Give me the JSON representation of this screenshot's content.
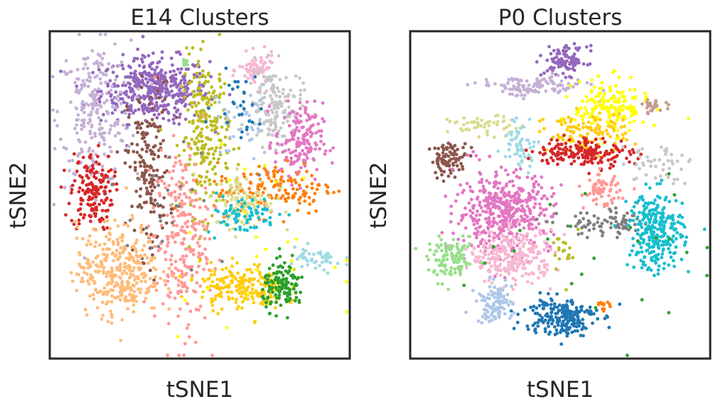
{
  "chart_data": [
    {
      "type": "scatter",
      "title": "E14 Clusters",
      "xlabel": "tSNE1",
      "ylabel": "tSNE2",
      "xlim": [
        0,
        100
      ],
      "ylim": [
        0,
        100
      ],
      "ticks": "none",
      "grid": false,
      "legend": "none",
      "clusters": [
        {
          "color": "#9467bd",
          "center": [
            35,
            82
          ],
          "spread": [
            9,
            5
          ],
          "count": 420
        },
        {
          "color": "#c5b0d5",
          "center": [
            15,
            75
          ],
          "spread": [
            6,
            11
          ],
          "count": 240
        },
        {
          "color": "#d62728",
          "center": [
            14,
            51
          ],
          "spread": [
            3.5,
            6
          ],
          "count": 160
        },
        {
          "color": "#8c564b",
          "center": [
            33,
            58
          ],
          "spread": [
            3.5,
            13
          ],
          "count": 180
        },
        {
          "color": "#bcbd22",
          "center": [
            52,
            68
          ],
          "spread": [
            4,
            12
          ],
          "count": 240
        },
        {
          "color": "#f7b6d2",
          "center": [
            69,
            88
          ],
          "spread": [
            3,
            2.5
          ],
          "count": 70
        },
        {
          "color": "#c7c7c7",
          "center": [
            75,
            77
          ],
          "spread": [
            4.5,
            6
          ],
          "count": 160
        },
        {
          "color": "#e377c2",
          "center": [
            83,
            66
          ],
          "spread": [
            4,
            6
          ],
          "count": 160
        },
        {
          "color": "#ff7f0e",
          "center": [
            75,
            52
          ],
          "spread": [
            10,
            4
          ],
          "count": 150
        },
        {
          "color": "#dbdb8d",
          "center": [
            65,
            48
          ],
          "spread": [
            5,
            4
          ],
          "count": 110
        },
        {
          "color": "#17becf",
          "center": [
            64,
            44
          ],
          "spread": [
            6,
            3
          ],
          "count": 70
        },
        {
          "color": "#ff9896",
          "center": [
            44,
            36
          ],
          "spread": [
            4.5,
            14
          ],
          "count": 240
        },
        {
          "color": "#ffbb78",
          "center": [
            23,
            27
          ],
          "spread": [
            7,
            7
          ],
          "count": 340
        },
        {
          "color": "#ffcc11",
          "center": [
            64,
            22
          ],
          "spread": [
            7,
            3.5
          ],
          "count": 210
        },
        {
          "color": "#2ca02c",
          "center": [
            78,
            22
          ],
          "spread": [
            3.5,
            3.5
          ],
          "count": 130
        },
        {
          "color": "#9edae5",
          "center": [
            88,
            30
          ],
          "spread": [
            5,
            2
          ],
          "count": 45
        },
        {
          "color": "#aec7e8",
          "center": [
            64,
            72
          ],
          "spread": [
            5,
            6
          ],
          "count": 35
        },
        {
          "color": "#1f77b4",
          "center": [
            63,
            78
          ],
          "spread": [
            4,
            5
          ],
          "count": 30
        },
        {
          "color": "#98df8a",
          "center": [
            45,
            91
          ],
          "spread": [
            1,
            0.8
          ],
          "count": 12
        },
        {
          "color": "#7f7f7f",
          "center": [
            40,
            50
          ],
          "spread": [
            10,
            10
          ],
          "count": 25
        },
        {
          "color": "#ffff00",
          "center": [
            65,
            35
          ],
          "spread": [
            15,
            12
          ],
          "count": 25
        }
      ]
    },
    {
      "type": "scatter",
      "title": "P0 Clusters",
      "xlabel": "tSNE1",
      "ylabel": "tSNE2",
      "xlim": [
        0,
        100
      ],
      "ylim": [
        0,
        100
      ],
      "ticks": "none",
      "grid": false,
      "legend": "none",
      "clusters": [
        {
          "color": "#9467bd",
          "center": [
            52,
            91
          ],
          "spread": [
            3.5,
            2.2
          ],
          "count": 100
        },
        {
          "color": "#c5b0d5",
          "center": [
            40,
            83
          ],
          "spread": [
            9,
            1.5
          ],
          "count": 120
        },
        {
          "color": "#ffff00",
          "center": [
            67,
            77
          ],
          "spread": [
            6,
            4
          ],
          "count": 170
        },
        {
          "color": "#ffcc11",
          "center": [
            59,
            69
          ],
          "spread": [
            7,
            3
          ],
          "count": 110
        },
        {
          "color": "#c49c94",
          "center": [
            81,
            77
          ],
          "spread": [
            2,
            1
          ],
          "count": 25
        },
        {
          "color": "#dbdb8d",
          "center": [
            25,
            71
          ],
          "spread": [
            6,
            1.5
          ],
          "count": 50
        },
        {
          "color": "#9edae5",
          "center": [
            37,
            66
          ],
          "spread": [
            3,
            4
          ],
          "count": 60
        },
        {
          "color": "#8c564b",
          "center": [
            13,
            61
          ],
          "spread": [
            3,
            2.5
          ],
          "count": 90
        },
        {
          "color": "#d62728",
          "center": [
            58,
            63
          ],
          "spread": [
            8,
            2.2
          ],
          "count": 180
        },
        {
          "color": "#c7c7c7",
          "center": [
            82,
            60
          ],
          "spread": [
            6,
            3
          ],
          "count": 45
        },
        {
          "color": "#e377c2",
          "center": [
            31,
            45
          ],
          "spread": [
            8,
            6
          ],
          "count": 450
        },
        {
          "color": "#f7b6d2",
          "center": [
            34,
            31
          ],
          "spread": [
            7,
            4
          ],
          "count": 260
        },
        {
          "color": "#ff9896",
          "center": [
            64,
            51
          ],
          "spread": [
            3,
            2.5
          ],
          "count": 70
        },
        {
          "color": "#7f7f7f",
          "center": [
            66,
            41
          ],
          "spread": [
            8,
            2
          ],
          "count": 80
        },
        {
          "color": "#17becf",
          "center": [
            82,
            39
          ],
          "spread": [
            4.5,
            6
          ],
          "count": 280
        },
        {
          "color": "#98df8a",
          "center": [
            14,
            30
          ],
          "spread": [
            4,
            3
          ],
          "count": 110
        },
        {
          "color": "#aec7e8",
          "center": [
            28,
            17
          ],
          "spread": [
            3,
            3
          ],
          "count": 100
        },
        {
          "color": "#1f77b4",
          "center": [
            50,
            13
          ],
          "spread": [
            6,
            3
          ],
          "count": 210
        },
        {
          "color": "#ff7f0e",
          "center": [
            65,
            16
          ],
          "spread": [
            1.5,
            1
          ],
          "count": 12
        },
        {
          "color": "#2ca02c",
          "center": [
            60,
            30
          ],
          "spread": [
            20,
            15
          ],
          "count": 25
        },
        {
          "color": "#bcbd22",
          "center": [
            53,
            32
          ],
          "spread": [
            3,
            4
          ],
          "count": 20
        }
      ]
    }
  ]
}
